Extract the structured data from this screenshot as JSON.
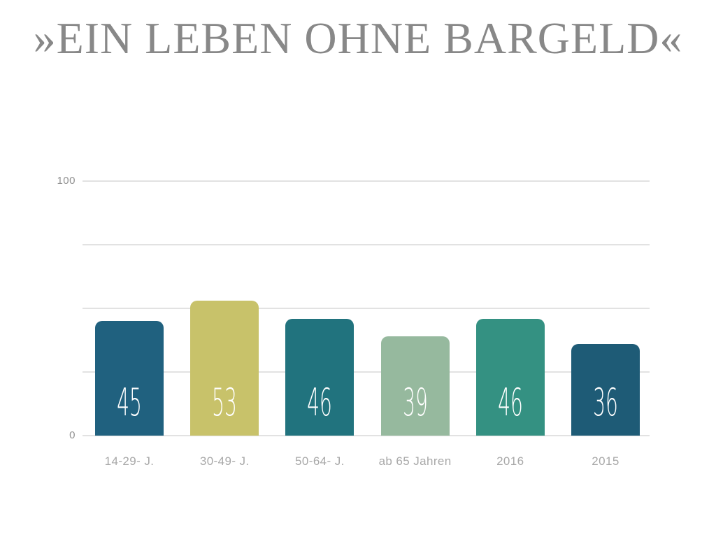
{
  "slide": {
    "title": "»EIN LEBEN OHNE BARGELD«"
  },
  "axis": {
    "y_top_label": "100",
    "y_bottom_label": "0"
  },
  "chart_data": {
    "type": "bar",
    "title": "»EIN LEBEN OHNE BARGELD«",
    "categories": [
      "14-29- J.",
      "30-49- J.",
      "50-64- J.",
      "ab 65 Jahren",
      "2016",
      "2015"
    ],
    "values": [
      45,
      53,
      46,
      39,
      46,
      36
    ],
    "bar_colors": [
      "#20617F",
      "#C8C26A",
      "#21737E",
      "#96B99E",
      "#349182",
      "#1E5B76"
    ],
    "value_label_color": "#FFFFFF",
    "xlabel": "",
    "ylabel": "",
    "ylim": [
      0,
      100
    ],
    "gridline_step": 25,
    "ytick_labels_shown": [
      "100",
      "0"
    ],
    "grid": true,
    "legend": false,
    "value_labels_position": "inside-bottom"
  },
  "theme": {
    "background": "#FFFFFF",
    "title_color": "#888888",
    "gridline_color": "#E2E2E2",
    "ytick_color": "#919191",
    "xtick_color": "#A8A8A8"
  }
}
